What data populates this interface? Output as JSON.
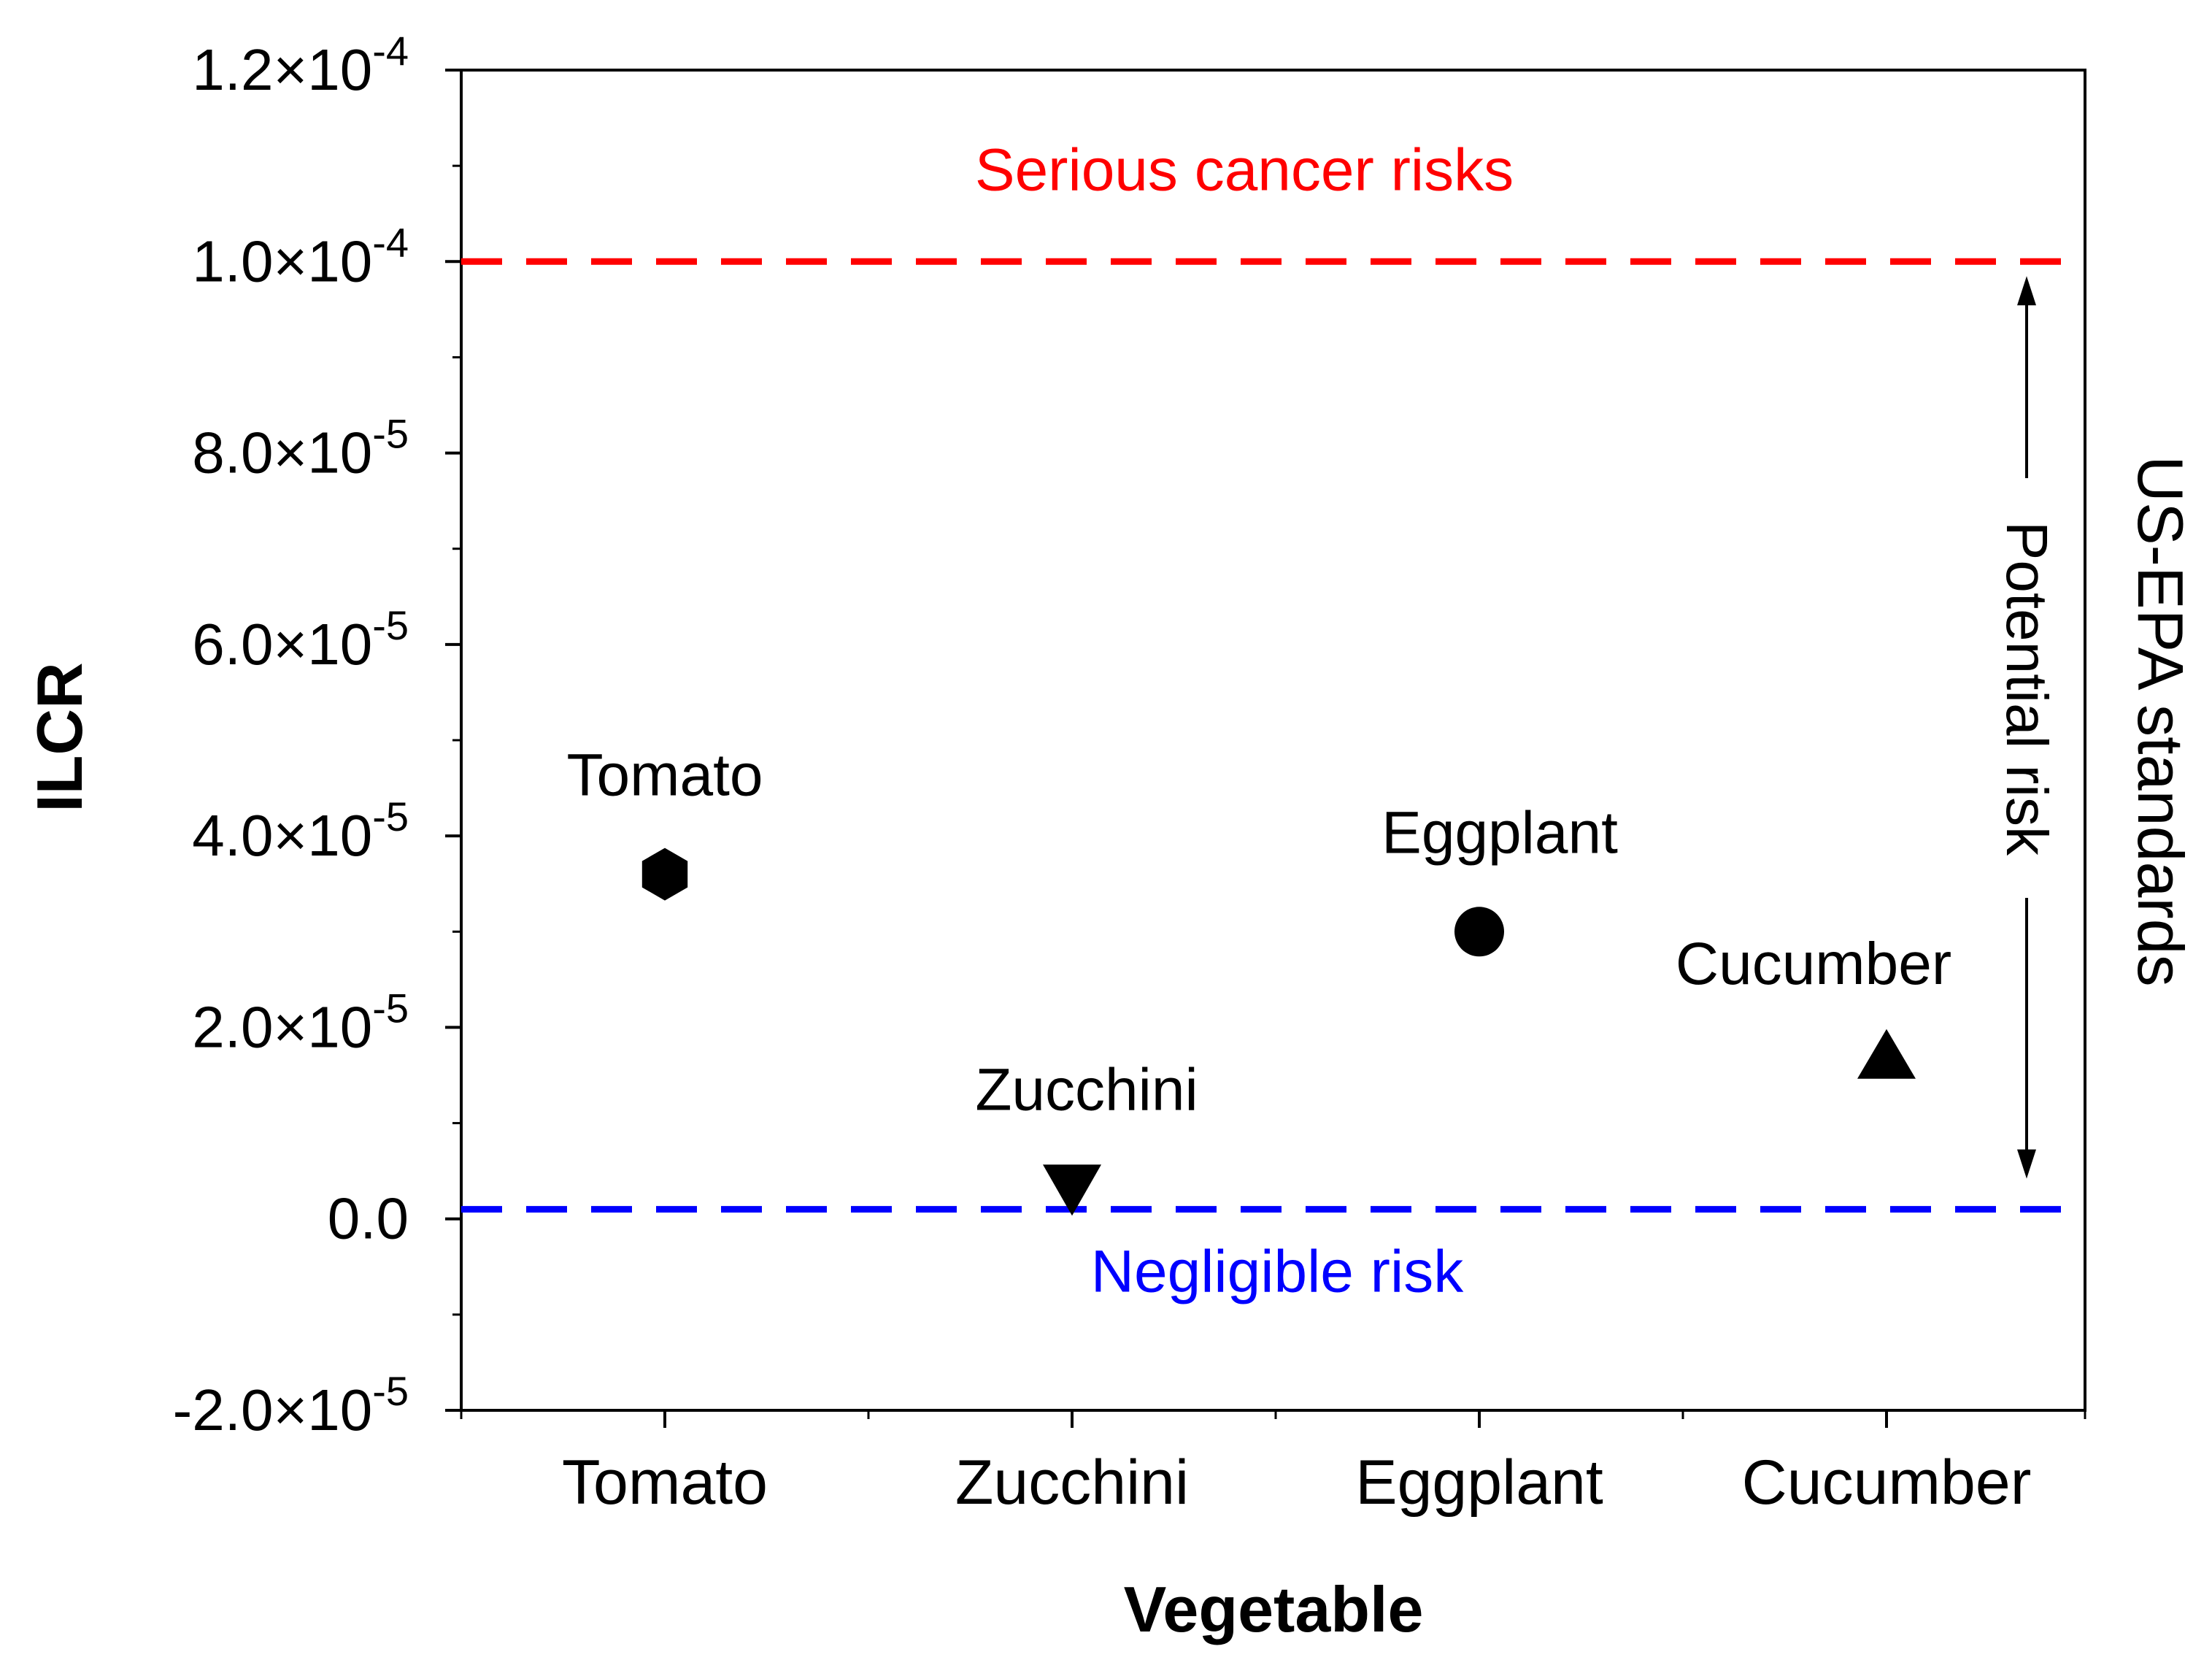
{
  "chart_data": {
    "type": "scatter",
    "title": "",
    "xlabel": "Vegetable",
    "ylabel": "ILCR",
    "right_label": "US-EPA standards",
    "categories": [
      "Tomato",
      "Zucchini",
      "Eggplant",
      "Cucumber"
    ],
    "points": [
      {
        "category": "Tomato",
        "value": 3.6e-05,
        "label": "Tomato",
        "marker": "hexagon"
      },
      {
        "category": "Zucchini",
        "value": 3e-06,
        "label": "Zucchini",
        "marker": "triangle-down"
      },
      {
        "category": "Eggplant",
        "value": 3e-05,
        "label": "Eggplant",
        "marker": "circle"
      },
      {
        "category": "Cucumber",
        "value": 1.7e-05,
        "label": "Cucumber",
        "marker": "triangle-up"
      }
    ],
    "ylim": [
      -2e-05,
      0.00012
    ],
    "yticks": [
      {
        "value": -2e-05,
        "mantissa": "-2.0",
        "exp": "-5"
      },
      {
        "value": 0,
        "mantissa": "0.0",
        "exp": ""
      },
      {
        "value": 2e-05,
        "mantissa": "2.0",
        "exp": "-5"
      },
      {
        "value": 4e-05,
        "mantissa": "4.0",
        "exp": "-5"
      },
      {
        "value": 6e-05,
        "mantissa": "6.0",
        "exp": "-5"
      },
      {
        "value": 8e-05,
        "mantissa": "8.0",
        "exp": "-5"
      },
      {
        "value": 0.0001,
        "mantissa": "1.0",
        "exp": "-4"
      },
      {
        "value": 0.00012,
        "mantissa": "1.2",
        "exp": "-4"
      }
    ],
    "reference_lines": [
      {
        "name": "serious",
        "value": 0.0001,
        "label": "Serious cancer risks",
        "color": "#ff0000"
      },
      {
        "name": "negligible",
        "value": 1e-06,
        "label": "Negligible risk",
        "color": "#0000ff"
      }
    ],
    "range_annotation": {
      "label": "Potential risk",
      "from": 1e-06,
      "to": 0.0001
    }
  }
}
